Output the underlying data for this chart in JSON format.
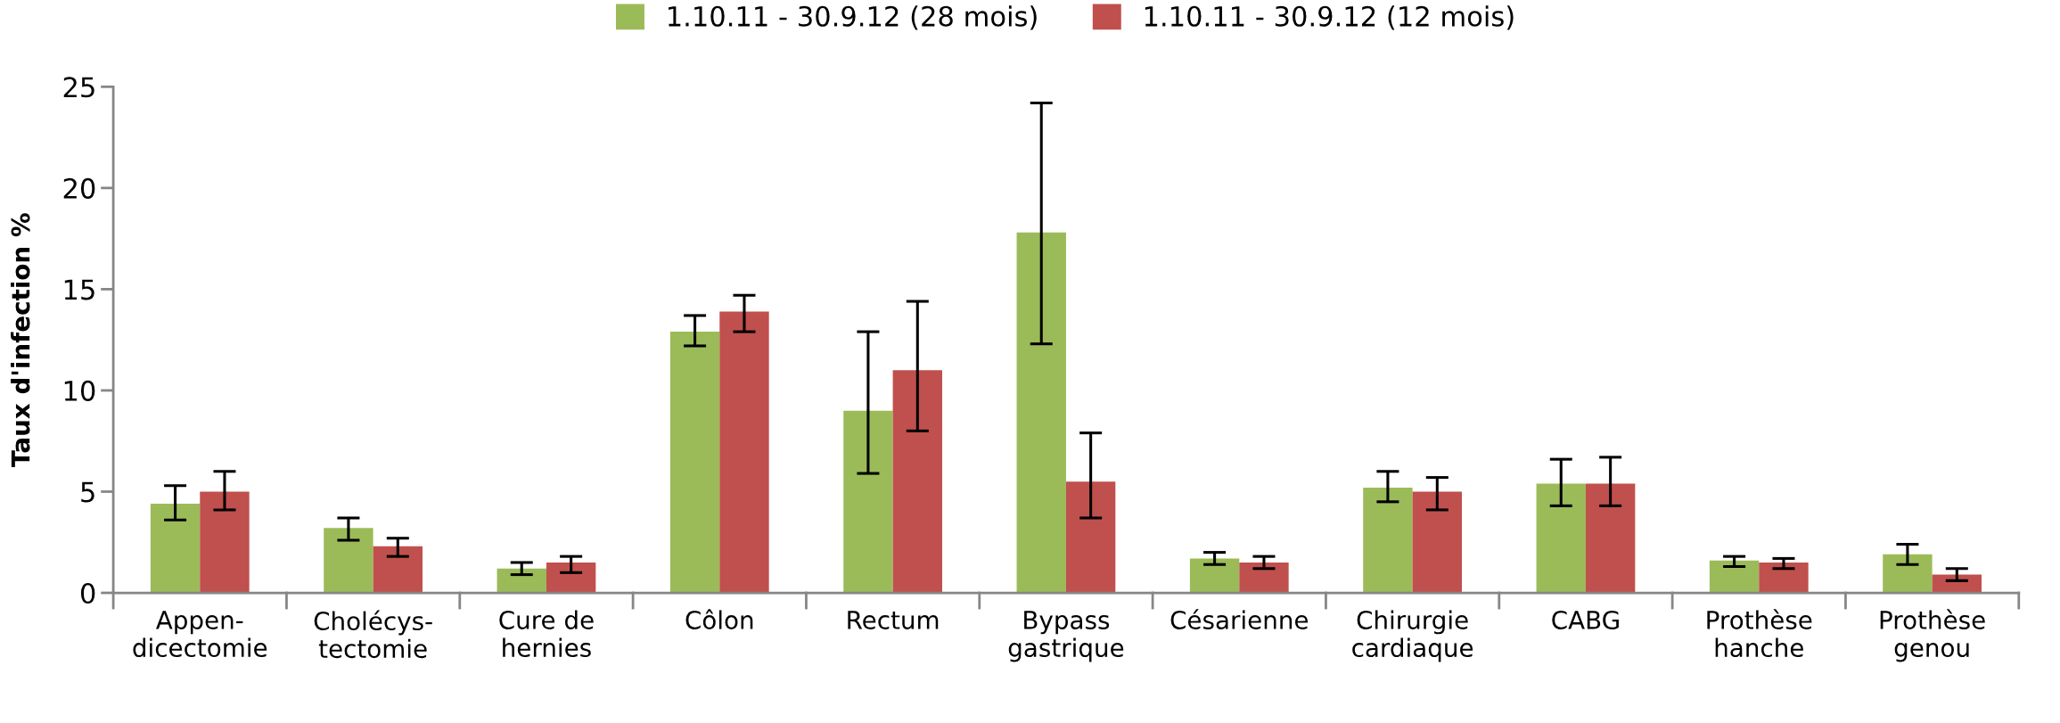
{
  "chart_data": {
    "type": "bar",
    "ylabel": "Taux d'infection %",
    "categories": [
      "Appen-\ndicectomie",
      "Cholécys-\ntectomie",
      "Cure de\nhernies",
      "Côlon",
      "Rectum",
      "Bypass\ngastrique",
      "Césarienne",
      "Chirurgie\ncardiaque",
      "CABG",
      "Prothèse\nhanche",
      "Prothèse\ngenou"
    ],
    "series": [
      {
        "name": "1.10.11 - 30.9.12 (28 mois)",
        "color": "#9bbb59",
        "values": [
          4.4,
          3.2,
          1.2,
          12.9,
          9.0,
          17.8,
          1.7,
          5.2,
          5.4,
          1.6,
          1.9
        ],
        "errors": [
          [
            3.6,
            5.3
          ],
          [
            2.6,
            3.7
          ],
          [
            0.9,
            1.5
          ],
          [
            12.2,
            13.7
          ],
          [
            5.9,
            12.9
          ],
          [
            12.3,
            24.2
          ],
          [
            1.4,
            2.0
          ],
          [
            4.5,
            6.0
          ],
          [
            4.3,
            6.6
          ],
          [
            1.3,
            1.8
          ],
          [
            1.4,
            2.4
          ]
        ]
      },
      {
        "name": "1.10.11 - 30.9.12 (12 mois)",
        "color": "#c0504d",
        "values": [
          5.0,
          2.3,
          1.5,
          13.9,
          11.0,
          5.5,
          1.5,
          5.0,
          5.4,
          1.5,
          0.9
        ],
        "errors": [
          [
            4.1,
            6.0
          ],
          [
            1.8,
            2.7
          ],
          [
            1.0,
            1.8
          ],
          [
            12.9,
            14.7
          ],
          [
            8.0,
            14.4
          ],
          [
            3.7,
            7.9
          ],
          [
            1.2,
            1.8
          ],
          [
            4.1,
            5.7
          ],
          [
            4.3,
            6.7
          ],
          [
            1.2,
            1.7
          ],
          [
            0.6,
            1.2
          ]
        ]
      }
    ],
    "ylim": [
      0,
      25
    ],
    "yticks": [
      0,
      5,
      10,
      15,
      20,
      25
    ],
    "grid": false,
    "legend": "top"
  }
}
